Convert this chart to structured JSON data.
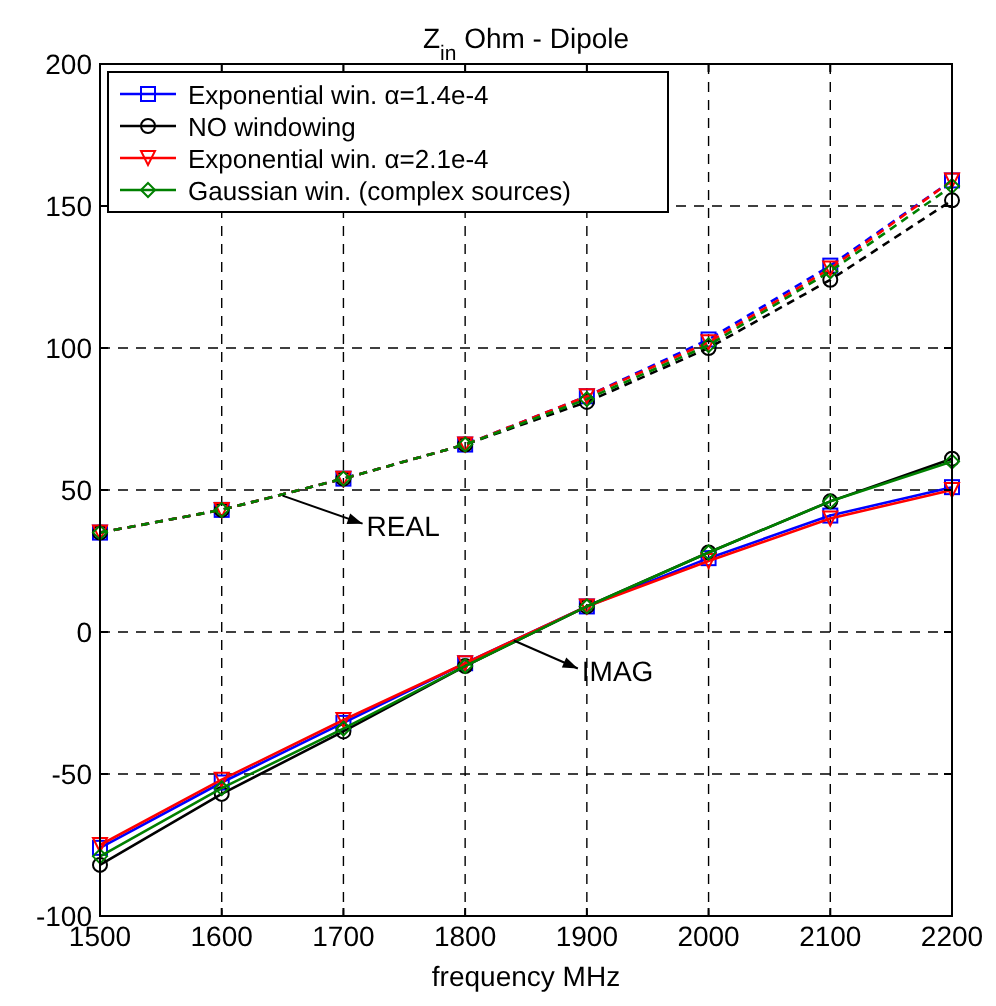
{
  "chart_data": {
    "type": "line",
    "title": "Z$_{in}$ Ohm - Dipole",
    "xlabel": "frequency MHz",
    "x": [
      1500,
      1600,
      1700,
      1800,
      1900,
      2000,
      2100,
      2200
    ],
    "xlim": [
      1500,
      2200
    ],
    "xticks": [
      1500,
      1600,
      1700,
      1800,
      1900,
      2000,
      2100,
      2200
    ],
    "ylim": [
      -100,
      200
    ],
    "yticks": [
      -100,
      -50,
      0,
      50,
      100,
      150,
      200
    ],
    "grid": true,
    "legend": "top left",
    "series": [
      {
        "name": "Exponential win. α=1.4e-4",
        "color": "#0000ff",
        "marker": "square",
        "line_style": "solid",
        "values": [
          -76,
          -53,
          -32,
          -11,
          9,
          26,
          41,
          51
        ]
      },
      {
        "name": "NO windowing",
        "color": "#000000",
        "marker": "circle",
        "line_style": "solid",
        "values": [
          -82,
          -57,
          -35,
          -12,
          9,
          28,
          46,
          61
        ]
      },
      {
        "name": "Exponential win. α=2.1e-4",
        "color": "#ff0000",
        "marker": "triangle",
        "line_style": "solid",
        "values": [
          -75,
          -52,
          -31,
          -11,
          9,
          25,
          40,
          50
        ]
      },
      {
        "name": "Gaussian win. (complex sources)",
        "color": "#008000",
        "marker": "diamond",
        "line_style": "solid",
        "values": [
          -79,
          -55,
          -34,
          -12,
          9,
          28,
          46,
          60
        ]
      },
      {
        "color": "#0000ff",
        "marker": "square",
        "line_style": "dashed",
        "values": [
          35,
          43,
          54,
          66,
          83,
          103,
          129,
          159
        ]
      },
      {
        "color": "#000000",
        "marker": "circle",
        "line_style": "dashed",
        "values": [
          35,
          43,
          54,
          66,
          81,
          100,
          124,
          152
        ]
      },
      {
        "color": "#ff0000",
        "marker": "triangle",
        "line_style": "dashed",
        "values": [
          35,
          43,
          54,
          66,
          83,
          102,
          128,
          159
        ]
      },
      {
        "color": "#008000",
        "marker": "diamond",
        "line_style": "dashed",
        "values": [
          35,
          43,
          54,
          66,
          82,
          101,
          127,
          157
        ]
      }
    ],
    "annotations": [
      {
        "text": "REAL",
        "x": 1650,
        "y": 48
      },
      {
        "text": "IMAG",
        "x": 1840,
        "y": -3
      }
    ]
  }
}
